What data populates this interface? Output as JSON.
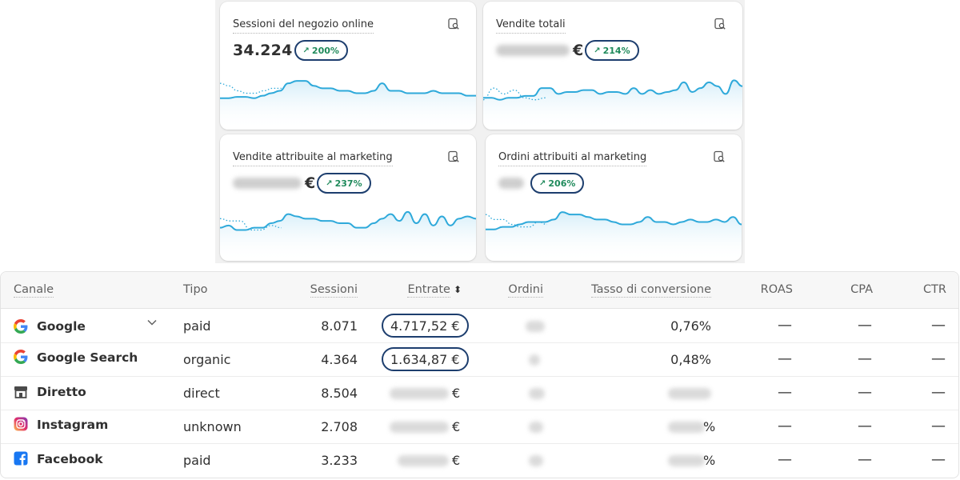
{
  "metric_cards": [
    {
      "title": "Sessioni del negozio online",
      "value": "34.224",
      "change": "200%",
      "chart_data": {
        "type": "line",
        "series": [
          {
            "style": "dotted",
            "values": [
              9,
              8,
              6,
              5,
              5,
              6,
              7,
              7
            ]
          },
          {
            "style": "solid",
            "values": [
              3,
              3,
              3.5,
              3.5,
              3,
              4,
              5,
              6,
              9,
              10,
              10,
              8,
              7,
              7,
              6,
              6,
              5,
              5,
              6,
              9,
              6,
              6,
              5,
              5,
              5,
              6,
              5,
              5,
              5,
              4,
              4
            ]
          }
        ]
      }
    },
    {
      "title": "Vendite totali",
      "value": "",
      "currency": "€",
      "change": "214%",
      "chart_data": {
        "type": "line",
        "series": [
          {
            "style": "dotted",
            "values": [
              3,
              9,
              6,
              8,
              4,
              3,
              4
            ]
          },
          {
            "style": "solid",
            "values": [
              4,
              4,
              3,
              4,
              4,
              5,
              5,
              9,
              9,
              6,
              7,
              7,
              8,
              8,
              6,
              7,
              7,
              6,
              9,
              6,
              8,
              6,
              7,
              8,
              12,
              7,
              9,
              12,
              10,
              6,
              13,
              10
            ]
          }
        ]
      }
    },
    {
      "title": "Vendite attribuite al marketing",
      "value": "",
      "currency": "€",
      "change": "237%",
      "chart_data": {
        "type": "line",
        "series": [
          {
            "style": "dotted",
            "values": [
              8,
              7,
              7,
              3,
              3,
              5,
              4
            ]
          },
          {
            "style": "solid",
            "values": [
              4,
              5,
              3,
              3,
              4,
              4,
              6,
              7,
              10,
              9,
              8,
              8,
              7,
              7,
              6,
              6,
              4,
              4,
              6,
              8,
              10,
              7,
              11,
              6,
              10,
              5,
              9,
              5,
              8,
              9,
              8
            ]
          }
        ]
      }
    },
    {
      "title": "Ordini attribuiti al marketing",
      "value": "",
      "change": "206%",
      "chart_data": {
        "type": "line",
        "series": [
          {
            "style": "dotted",
            "values": [
              9,
              7,
              7,
              5,
              4,
              4,
              6,
              5
            ]
          },
          {
            "style": "solid",
            "values": [
              3,
              3,
              4,
              4,
              5,
              6,
              6,
              6,
              7,
              10,
              9,
              9,
              8,
              7,
              7,
              6,
              5,
              5,
              6,
              8,
              6,
              6,
              5,
              6,
              7,
              6,
              6,
              7,
              6,
              8,
              5
            ]
          }
        ]
      }
    }
  ],
  "table": {
    "headers": [
      "Canale",
      "Tipo",
      "Sessioni",
      "Entrate",
      "Ordini",
      "Tasso di conversione",
      "ROAS",
      "CPA",
      "CTR"
    ],
    "rows": [
      {
        "channel": "Google",
        "icon": "google-icon",
        "type": "paid",
        "sessions": "8.071",
        "revenue": "4.717,52 €",
        "conversion": "0,76%",
        "roas": "—",
        "cpa": "—",
        "ctr": "—",
        "expandable": true
      },
      {
        "channel": "Google Search",
        "icon": "google-icon",
        "type": "organic",
        "sessions": "4.364",
        "revenue": "1.634,87 €",
        "conversion": "0,48%",
        "roas": "—",
        "cpa": "—",
        "ctr": "—"
      },
      {
        "channel": "Diretto",
        "icon": "store-icon",
        "type": "direct",
        "sessions": "8.504",
        "revenue_suffix": "€",
        "roas": "—",
        "cpa": "—",
        "ctr": "—"
      },
      {
        "channel": "Instagram",
        "icon": "instagram-icon",
        "type": "unknown",
        "sessions": "2.708",
        "revenue_suffix": "€",
        "conversion_suffix": "%",
        "roas": "—",
        "cpa": "—",
        "ctr": "—"
      },
      {
        "channel": "Facebook",
        "icon": "facebook-icon",
        "type": "paid",
        "sessions": "3.233",
        "revenue_suffix": "€",
        "conversion_suffix": "%",
        "roas": "—",
        "cpa": "—",
        "ctr": "—"
      }
    ]
  },
  "colors": {
    "spark_line": "#2ea9da",
    "spark_fill": "#d6eef9",
    "badge_text": "#1f8a5b",
    "highlight_border": "#1d3e6e"
  }
}
